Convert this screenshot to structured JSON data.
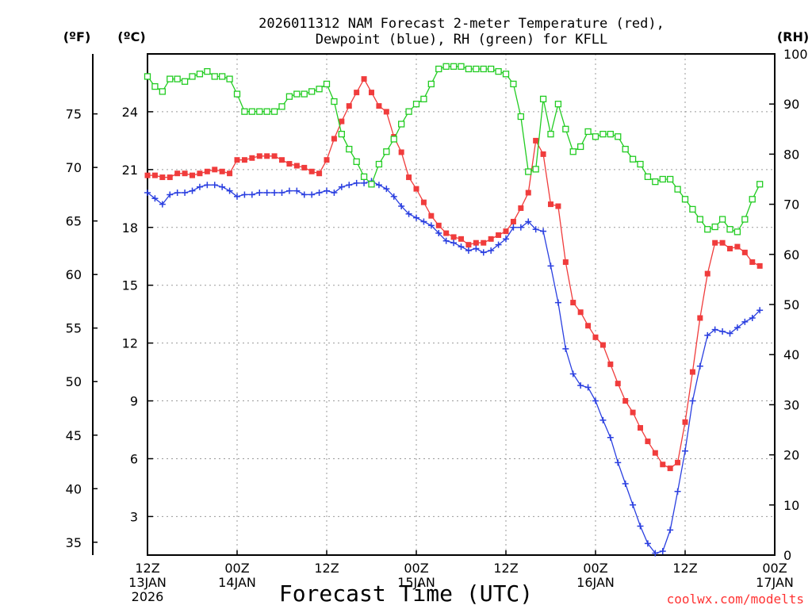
{
  "chart_data": {
    "type": "line",
    "title_line1": "2026011312 NAM Forecast 2-meter Temperature (red),",
    "title_line2": "Dewpoint (blue), RH (green) for KFLL",
    "xlabel": "Forecast Time (UTC)",
    "credit": "coolwx.com/modelts",
    "credit_color": "#ff3333",
    "units": {
      "fahrenheit": "(ºF)",
      "celsius": "(ºC)",
      "rh": "(RH)"
    },
    "fahrenheit_ticks": [
      35,
      40,
      45,
      50,
      55,
      60,
      65,
      70,
      75
    ],
    "celsius_ticks": [
      3,
      6,
      9,
      12,
      15,
      18,
      21,
      24
    ],
    "rh_ticks": [
      0,
      10,
      20,
      30,
      40,
      50,
      60,
      70,
      80,
      90,
      100
    ],
    "celsius_range": [
      1.0,
      27.0
    ],
    "rh_range": [
      0,
      100
    ],
    "forecast_hours_range": [
      0,
      84
    ],
    "x_ticks": [
      {
        "hour": 0,
        "line1": "12Z",
        "line2": "13JAN",
        "line3": "2026"
      },
      {
        "hour": 12,
        "line1": "00Z",
        "line2": "14JAN",
        "line3": ""
      },
      {
        "hour": 24,
        "line1": "12Z",
        "line2": "",
        "line3": ""
      },
      {
        "hour": 36,
        "line1": "00Z",
        "line2": "15JAN",
        "line3": ""
      },
      {
        "hour": 48,
        "line1": "12Z",
        "line2": "",
        "line3": ""
      },
      {
        "hour": 60,
        "line1": "00Z",
        "line2": "16JAN",
        "line3": ""
      },
      {
        "hour": 72,
        "line1": "12Z",
        "line2": "",
        "line3": ""
      },
      {
        "hour": 84,
        "line1": "00Z",
        "line2": "17JAN",
        "line3": ""
      }
    ],
    "series": [
      {
        "name": "2-meter Temperature (°C)",
        "color": "#f03c3c",
        "marker": "square",
        "axis": "celsius",
        "hours": [
          0,
          1,
          2,
          3,
          4,
          5,
          6,
          7,
          8,
          9,
          10,
          11,
          12,
          13,
          14,
          15,
          16,
          17,
          18,
          19,
          20,
          21,
          22,
          23,
          24,
          25,
          26,
          27,
          28,
          29,
          30,
          31,
          32,
          33,
          34,
          35,
          36,
          37,
          38,
          39,
          40,
          41,
          42,
          43,
          44,
          45,
          46,
          47,
          48,
          49,
          50,
          51,
          52,
          53,
          54,
          55,
          56,
          57,
          58,
          59,
          60,
          61,
          62,
          63,
          64,
          65,
          66,
          67,
          68,
          69,
          70,
          71,
          72,
          73,
          74,
          75,
          76,
          77,
          78,
          79,
          80,
          81,
          82,
          83,
          84
        ],
        "values": [
          20.7,
          20.7,
          20.6,
          20.6,
          20.8,
          20.8,
          20.7,
          20.8,
          20.9,
          21.0,
          20.9,
          20.8,
          21.5,
          21.5,
          21.6,
          21.7,
          21.7,
          21.7,
          21.5,
          21.3,
          21.2,
          21.1,
          20.9,
          20.8,
          21.5,
          22.6,
          23.5,
          24.3,
          25.0,
          25.7,
          25.0,
          24.3,
          24.0,
          22.7,
          21.9,
          20.6,
          20.0,
          19.3,
          18.6,
          18.1,
          17.7,
          17.5,
          17.4,
          17.1,
          17.2,
          17.2,
          17.4,
          17.6,
          17.8,
          18.3,
          19.0,
          19.8,
          22.5,
          21.8,
          19.2,
          19.1,
          16.2,
          14.1,
          13.6,
          12.9,
          12.3,
          11.9,
          10.9,
          9.9,
          9.0,
          8.4,
          7.6,
          6.9,
          6.3,
          5.7,
          5.5,
          5.8,
          7.9,
          10.5,
          13.3,
          15.6,
          17.2,
          17.2,
          16.9,
          17.0,
          16.7,
          16.2,
          16.0,
          null,
          null
        ]
      },
      {
        "name": "Dewpoint (°C)",
        "color": "#2a3fe0",
        "marker": "plus",
        "axis": "celsius",
        "hours": [
          0,
          1,
          2,
          3,
          4,
          5,
          6,
          7,
          8,
          9,
          10,
          11,
          12,
          13,
          14,
          15,
          16,
          17,
          18,
          19,
          20,
          21,
          22,
          23,
          24,
          25,
          26,
          27,
          28,
          29,
          30,
          31,
          32,
          33,
          34,
          35,
          36,
          37,
          38,
          39,
          40,
          41,
          42,
          43,
          44,
          45,
          46,
          47,
          48,
          49,
          50,
          51,
          52,
          53,
          54,
          55,
          56,
          57,
          58,
          59,
          60,
          61,
          62,
          63,
          64,
          65,
          66,
          67,
          68,
          69,
          70,
          71,
          72,
          73,
          74,
          75,
          76,
          77,
          78,
          79,
          80,
          81,
          82,
          83,
          84
        ],
        "values": [
          19.8,
          19.5,
          19.2,
          19.7,
          19.8,
          19.8,
          19.9,
          20.1,
          20.2,
          20.2,
          20.1,
          19.9,
          19.6,
          19.7,
          19.7,
          19.8,
          19.8,
          19.8,
          19.8,
          19.9,
          19.9,
          19.7,
          19.7,
          19.8,
          19.9,
          19.8,
          20.1,
          20.2,
          20.3,
          20.3,
          20.4,
          20.2,
          20.0,
          19.6,
          19.1,
          18.7,
          18.5,
          18.3,
          18.1,
          17.7,
          17.3,
          17.2,
          17.0,
          16.8,
          16.9,
          16.7,
          16.8,
          17.1,
          17.4,
          18.0,
          18.0,
          18.3,
          17.9,
          17.8,
          16.0,
          14.1,
          11.7,
          10.4,
          9.8,
          9.7,
          9.0,
          8.0,
          7.1,
          5.8,
          4.7,
          3.6,
          2.5,
          1.6,
          1.1,
          1.2,
          2.3,
          4.3,
          6.4,
          9.0,
          10.8,
          12.4,
          12.7,
          12.6,
          12.5,
          12.8,
          13.1,
          13.3,
          13.7,
          null,
          null
        ]
      },
      {
        "name": "RH (%)",
        "color": "#22cc22",
        "marker": "open-square",
        "axis": "rh",
        "hours": [
          0,
          1,
          2,
          3,
          4,
          5,
          6,
          7,
          8,
          9,
          10,
          11,
          12,
          13,
          14,
          15,
          16,
          17,
          18,
          19,
          20,
          21,
          22,
          23,
          24,
          25,
          26,
          27,
          28,
          29,
          30,
          31,
          32,
          33,
          34,
          35,
          36,
          37,
          38,
          39,
          40,
          41,
          42,
          43,
          44,
          45,
          46,
          47,
          48,
          49,
          50,
          51,
          52,
          53,
          54,
          55,
          56,
          57,
          58,
          59,
          60,
          61,
          62,
          63,
          64,
          65,
          66,
          67,
          68,
          69,
          70,
          71,
          72,
          73,
          74,
          75,
          76,
          77,
          78,
          79,
          80,
          81,
          82,
          83,
          84
        ],
        "values": [
          95.5,
          93.5,
          92.5,
          95,
          95,
          94.5,
          95.5,
          96,
          96.5,
          95.5,
          95.5,
          95,
          92,
          88.5,
          88.5,
          88.5,
          88.5,
          88.5,
          89.5,
          91.5,
          92,
          92,
          92.5,
          93,
          94,
          90.5,
          84,
          81,
          78.5,
          75.5,
          74,
          78,
          80.5,
          83,
          86,
          88.5,
          90,
          91,
          94,
          97,
          97.5,
          97.5,
          97.5,
          97,
          97,
          97,
          97,
          96.5,
          96,
          94,
          87.5,
          76.5,
          77,
          91,
          84,
          90,
          85,
          80.5,
          81.5,
          84.5,
          83.5,
          84,
          84,
          83.5,
          81,
          79,
          78,
          75.5,
          74.5,
          75,
          75,
          73,
          71,
          69,
          67,
          65,
          65.5,
          67,
          65,
          64.5,
          67,
          71,
          74,
          null,
          null
        ]
      }
    ]
  }
}
